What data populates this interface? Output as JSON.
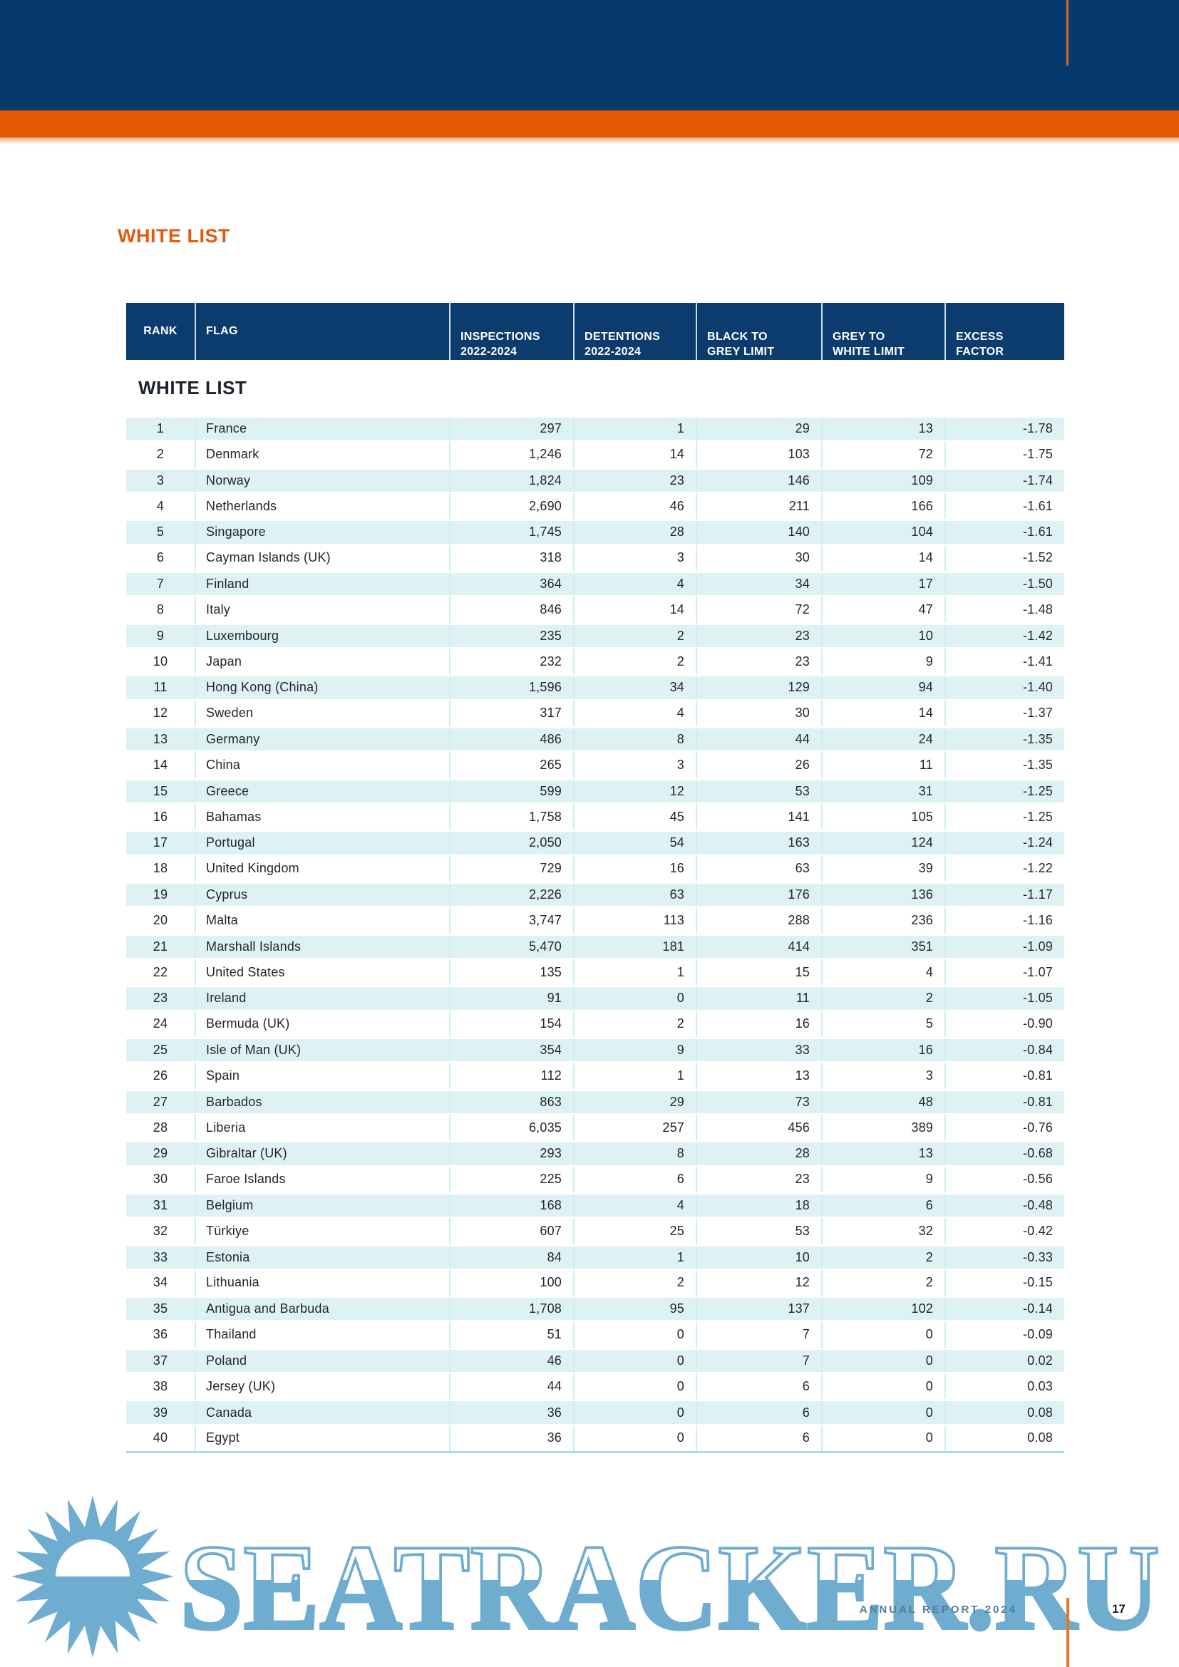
{
  "page": {
    "title": "WHITE LIST",
    "footer": {
      "report_label": "ANNUAL REPORT 2024",
      "page_number": "17"
    },
    "watermark": {
      "text": "SEATRACKER.RU"
    }
  },
  "colors": {
    "banner_navy": "#073a6c",
    "stripe_orange": "#e35a06",
    "title_orange": "#e25a0f",
    "table_header_navy": "#0c3c6e",
    "row_alt_cyan": "#def2f4",
    "table_border_cyan": "#a9dde1",
    "watermark_blue": "#64a7cc"
  },
  "table": {
    "headers": [
      {
        "line1": "RANK",
        "line2": ""
      },
      {
        "line1": "FLAG",
        "line2": ""
      },
      {
        "line1": "INSPECTIONS",
        "line2": "2022-2024"
      },
      {
        "line1": "DETENTIONS",
        "line2": "2022-2024"
      },
      {
        "line1": "BLACK TO",
        "line2": "GREY LIMIT"
      },
      {
        "line1": "GREY TO",
        "line2": "WHITE LIMIT"
      },
      {
        "line1": "EXCESS",
        "line2": "FACTOR"
      }
    ],
    "section_title": "WHITE LIST",
    "rows": [
      [
        "1",
        "France",
        "297",
        "1",
        "29",
        "13",
        "-1.78"
      ],
      [
        "2",
        "Denmark",
        "1,246",
        "14",
        "103",
        "72",
        "-1.75"
      ],
      [
        "3",
        "Norway",
        "1,824",
        "23",
        "146",
        "109",
        "-1.74"
      ],
      [
        "4",
        "Netherlands",
        "2,690",
        "46",
        "211",
        "166",
        "-1.61"
      ],
      [
        "5",
        "Singapore",
        "1,745",
        "28",
        "140",
        "104",
        "-1.61"
      ],
      [
        "6",
        "Cayman Islands (UK)",
        "318",
        "3",
        "30",
        "14",
        "-1.52"
      ],
      [
        "7",
        "Finland",
        "364",
        "4",
        "34",
        "17",
        "-1.50"
      ],
      [
        "8",
        "Italy",
        "846",
        "14",
        "72",
        "47",
        "-1.48"
      ],
      [
        "9",
        "Luxembourg",
        "235",
        "2",
        "23",
        "10",
        "-1.42"
      ],
      [
        "10",
        "Japan",
        "232",
        "2",
        "23",
        "9",
        "-1.41"
      ],
      [
        "11",
        "Hong Kong (China)",
        "1,596",
        "34",
        "129",
        "94",
        "-1.40"
      ],
      [
        "12",
        "Sweden",
        "317",
        "4",
        "30",
        "14",
        "-1.37"
      ],
      [
        "13",
        "Germany",
        "486",
        "8",
        "44",
        "24",
        "-1.35"
      ],
      [
        "14",
        "China",
        "265",
        "3",
        "26",
        "11",
        "-1.35"
      ],
      [
        "15",
        "Greece",
        "599",
        "12",
        "53",
        "31",
        "-1.25"
      ],
      [
        "16",
        "Bahamas",
        "1,758",
        "45",
        "141",
        "105",
        "-1.25"
      ],
      [
        "17",
        "Portugal",
        "2,050",
        "54",
        "163",
        "124",
        "-1.24"
      ],
      [
        "18",
        "United Kingdom",
        "729",
        "16",
        "63",
        "39",
        "-1.22"
      ],
      [
        "19",
        "Cyprus",
        "2,226",
        "63",
        "176",
        "136",
        "-1.17"
      ],
      [
        "20",
        "Malta",
        "3,747",
        "113",
        "288",
        "236",
        "-1.16"
      ],
      [
        "21",
        "Marshall Islands",
        "5,470",
        "181",
        "414",
        "351",
        "-1.09"
      ],
      [
        "22",
        "United States",
        "135",
        "1",
        "15",
        "4",
        "-1.07"
      ],
      [
        "23",
        "Ireland",
        "91",
        "0",
        "11",
        "2",
        "-1.05"
      ],
      [
        "24",
        "Bermuda (UK)",
        "154",
        "2",
        "16",
        "5",
        "-0.90"
      ],
      [
        "25",
        "Isle of Man (UK)",
        "354",
        "9",
        "33",
        "16",
        "-0.84"
      ],
      [
        "26",
        "Spain",
        "112",
        "1",
        "13",
        "3",
        "-0.81"
      ],
      [
        "27",
        "Barbados",
        "863",
        "29",
        "73",
        "48",
        "-0.81"
      ],
      [
        "28",
        "Liberia",
        "6,035",
        "257",
        "456",
        "389",
        "-0.76"
      ],
      [
        "29",
        "Gibraltar (UK)",
        "293",
        "8",
        "28",
        "13",
        "-0.68"
      ],
      [
        "30",
        "Faroe Islands",
        "225",
        "6",
        "23",
        "9",
        "-0.56"
      ],
      [
        "31",
        "Belgium",
        "168",
        "4",
        "18",
        "6",
        "-0.48"
      ],
      [
        "32",
        "Türkiye",
        "607",
        "25",
        "53",
        "32",
        "-0.42"
      ],
      [
        "33",
        "Estonia",
        "84",
        "1",
        "10",
        "2",
        "-0.33"
      ],
      [
        "34",
        "Lithuania",
        "100",
        "2",
        "12",
        "2",
        "-0.15"
      ],
      [
        "35",
        "Antigua and Barbuda",
        "1,708",
        "95",
        "137",
        "102",
        "-0.14"
      ],
      [
        "36",
        "Thailand",
        "51",
        "0",
        "7",
        "0",
        "-0.09"
      ],
      [
        "37",
        "Poland",
        "46",
        "0",
        "7",
        "0",
        "0.02"
      ],
      [
        "38",
        "Jersey (UK)",
        "44",
        "0",
        "6",
        "0",
        "0.03"
      ],
      [
        "39",
        "Canada",
        "36",
        "0",
        "6",
        "0",
        "0.08"
      ],
      [
        "40",
        "Egypt",
        "36",
        "0",
        "6",
        "0",
        "0.08"
      ]
    ]
  }
}
